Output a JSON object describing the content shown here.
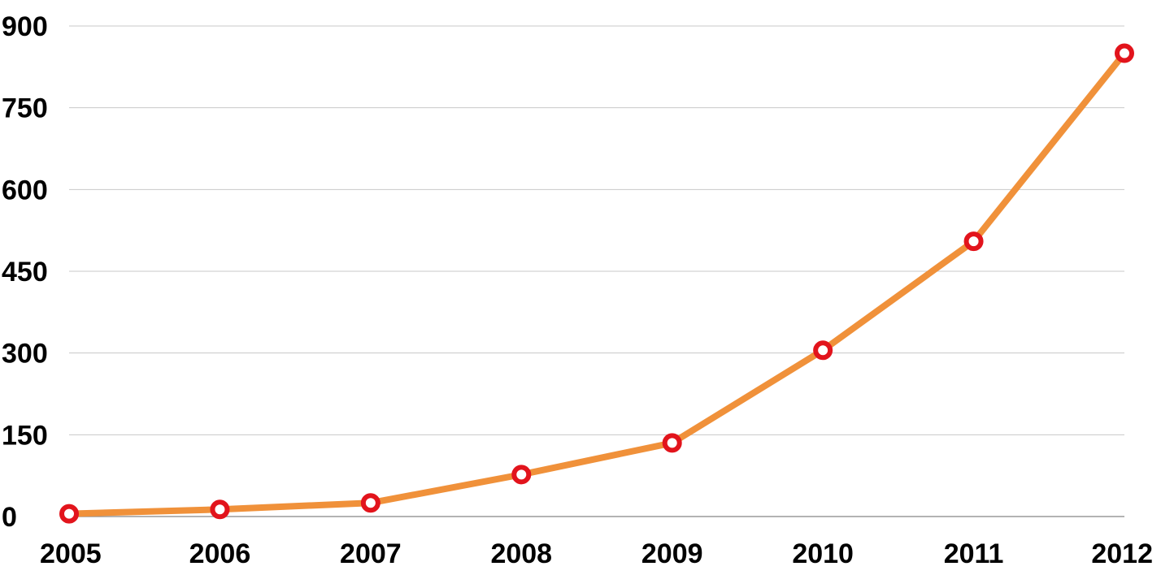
{
  "chart_data": {
    "type": "line",
    "title": "",
    "xlabel": "",
    "ylabel": "",
    "x": [
      "2005",
      "2006",
      "2007",
      "2008",
      "2009",
      "2010",
      "2011",
      "2012"
    ],
    "series": [
      {
        "values": [
          5,
          13,
          25,
          77,
          135,
          305,
          505,
          850
        ]
      }
    ],
    "ylim": [
      0,
      900
    ],
    "yticks": [
      0,
      150,
      300,
      450,
      600,
      750,
      900
    ],
    "ytick_labels": [
      "0",
      "150",
      "300",
      "450",
      "600",
      "750",
      "900"
    ],
    "grid": true,
    "legend": "none",
    "colors": {
      "line": "#f0913a",
      "marker_stroke": "#e2141c",
      "marker_fill": "#ffffff",
      "grid": "#c8c8c8",
      "text": "#000000"
    }
  }
}
